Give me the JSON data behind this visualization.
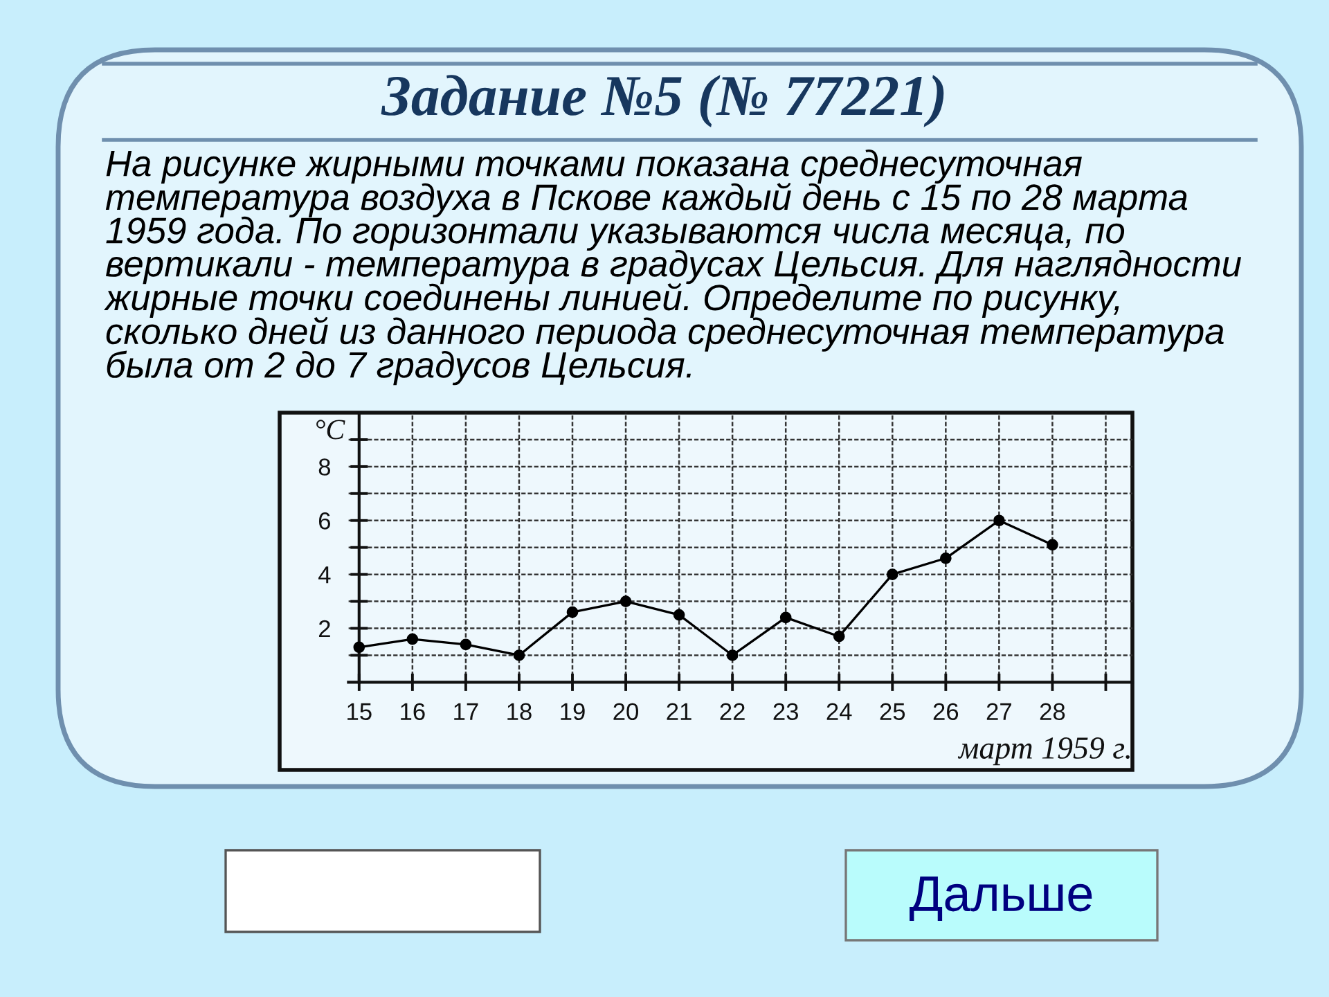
{
  "chart_data": {
    "type": "line",
    "title": "Задание №5 (№ 77221)",
    "subtitle": "На рисунке жирными точками показана среднесуточная\nтемпература воздуха в Пскове каждый день с 15 по 28 марта\n1959 года. По горизонтали указываются числа месяца, по\nвертикали - температура в градусах Цельсия. Для наглядности\nжирные точки соединены линией. Определите по рисунку,\nсколько дней из данного периода среднесуточная температура\nбыла от 2 до 7 градусов Цельсия.",
    "xlabel": "март 1959 г.",
    "ylabel": "°C",
    "annotations": [
      "Дальше"
    ],
    "x": [
      15,
      16,
      17,
      18,
      19,
      20,
      21,
      22,
      23,
      24,
      25,
      26,
      27,
      28
    ],
    "values": [
      1.3,
      1.6,
      1.4,
      1.0,
      2.6,
      3.0,
      2.5,
      1.0,
      2.4,
      1.7,
      4.0,
      4.6,
      6.0,
      5.1
    ],
    "color": "#000000",
    "marker": "circle",
    "line_style": "solid",
    "xlim": [
      14.8,
      29.5
    ],
    "ylim": [
      0,
      10
    ],
    "xticks": [
      15,
      16,
      17,
      18,
      19,
      20,
      21,
      22,
      23,
      24,
      25,
      26,
      27,
      28,
      {
        "value": 29,
        "label": null
      }
    ],
    "yticks": [
      {
        "value": 1,
        "label": null
      },
      2,
      {
        "value": 3,
        "label": null
      },
      4,
      {
        "value": 5,
        "label": null
      },
      6,
      {
        "value": 7,
        "label": null
      },
      8,
      {
        "value": 9,
        "label": null
      }
    ],
    "grid": true
  }
}
